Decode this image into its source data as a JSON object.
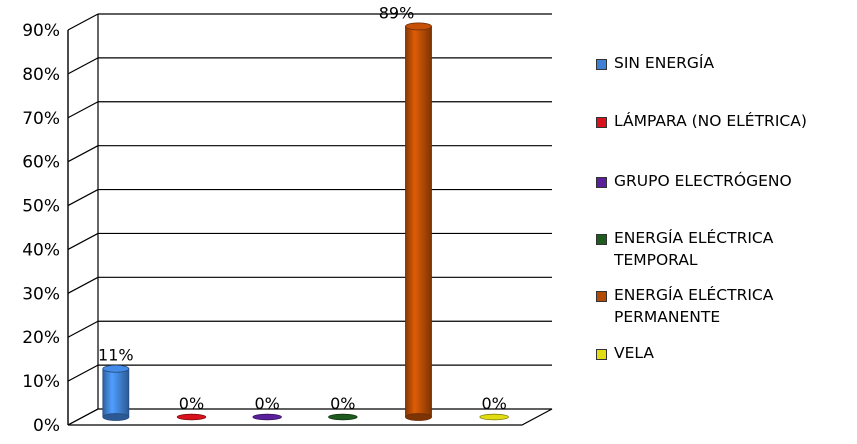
{
  "chart_data": {
    "type": "bar",
    "title": "",
    "xlabel": "",
    "ylabel": "",
    "ylim": [
      0,
      90
    ],
    "y_ticks": [
      "0%",
      "10%",
      "20%",
      "30%",
      "40%",
      "50%",
      "60%",
      "70%",
      "80%",
      "90%"
    ],
    "grid": true,
    "legend_position": "right",
    "categories": [
      "SIN ENERGÍA",
      "LÁMPARA (NO ELÉTRICA)",
      "GRUPO ELECTRÓGENO",
      "ENERGÍA ELÉCTRICA TEMPORAL",
      "ENERGÍA ELÉCTRICA PERMANENTE",
      "VELA"
    ],
    "values": [
      11,
      0,
      0,
      0,
      89,
      0
    ],
    "data_labels": [
      "11%",
      "0%",
      "0%",
      "0%",
      "89%",
      "0%"
    ],
    "colors": [
      "#3f7fd4",
      "#d8121c",
      "#5a1f9a",
      "#1f5a1f",
      "#b24a05",
      "#e2dd12"
    ]
  }
}
